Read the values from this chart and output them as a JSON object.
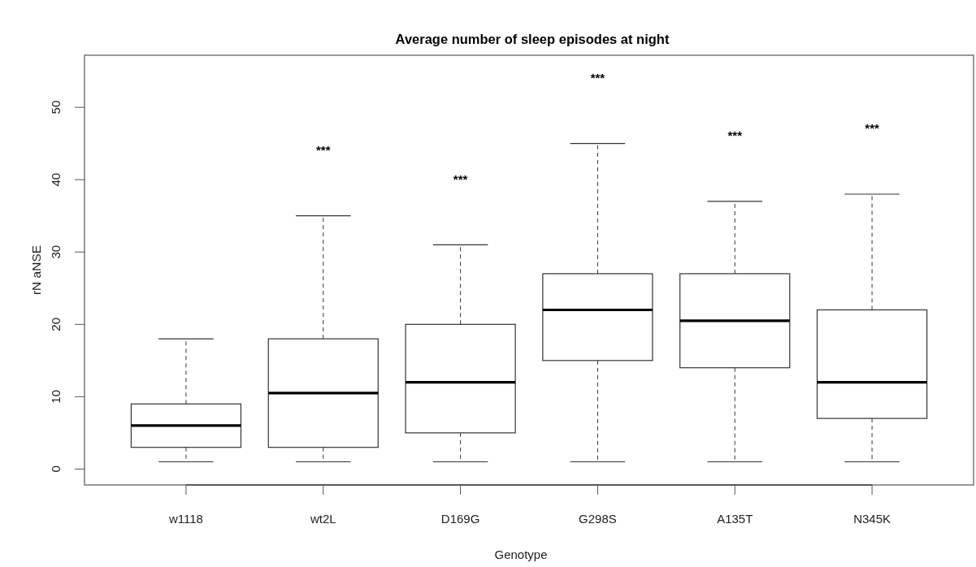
{
  "chart_data": {
    "type": "box",
    "title": "Average number of sleep episodes at night",
    "xlabel": "Genotype",
    "ylabel": "rN aNSE",
    "categories": [
      "w1118",
      "wt2L",
      "D169G",
      "G298S",
      "A135T",
      "N345K"
    ],
    "boxes": [
      {
        "low": 1,
        "q1": 3,
        "median": 6,
        "q3": 9,
        "high": 18
      },
      {
        "low": 1,
        "q1": 3,
        "median": 10.5,
        "q3": 18,
        "high": 35
      },
      {
        "low": 1,
        "q1": 5,
        "median": 12,
        "q3": 20,
        "high": 31
      },
      {
        "low": 1,
        "q1": 15,
        "median": 22,
        "q3": 27,
        "high": 45
      },
      {
        "low": 1,
        "q1": 14,
        "median": 20.5,
        "q3": 27,
        "high": 37
      },
      {
        "low": 1,
        "q1": 7,
        "median": 12,
        "q3": 22,
        "high": 38
      }
    ],
    "ylim": [
      -2.2,
      57.2
    ],
    "yticks": [
      0,
      10,
      20,
      30,
      40,
      50
    ],
    "annotations": [
      "***",
      "***",
      "***",
      "***",
      "***"
    ]
  }
}
